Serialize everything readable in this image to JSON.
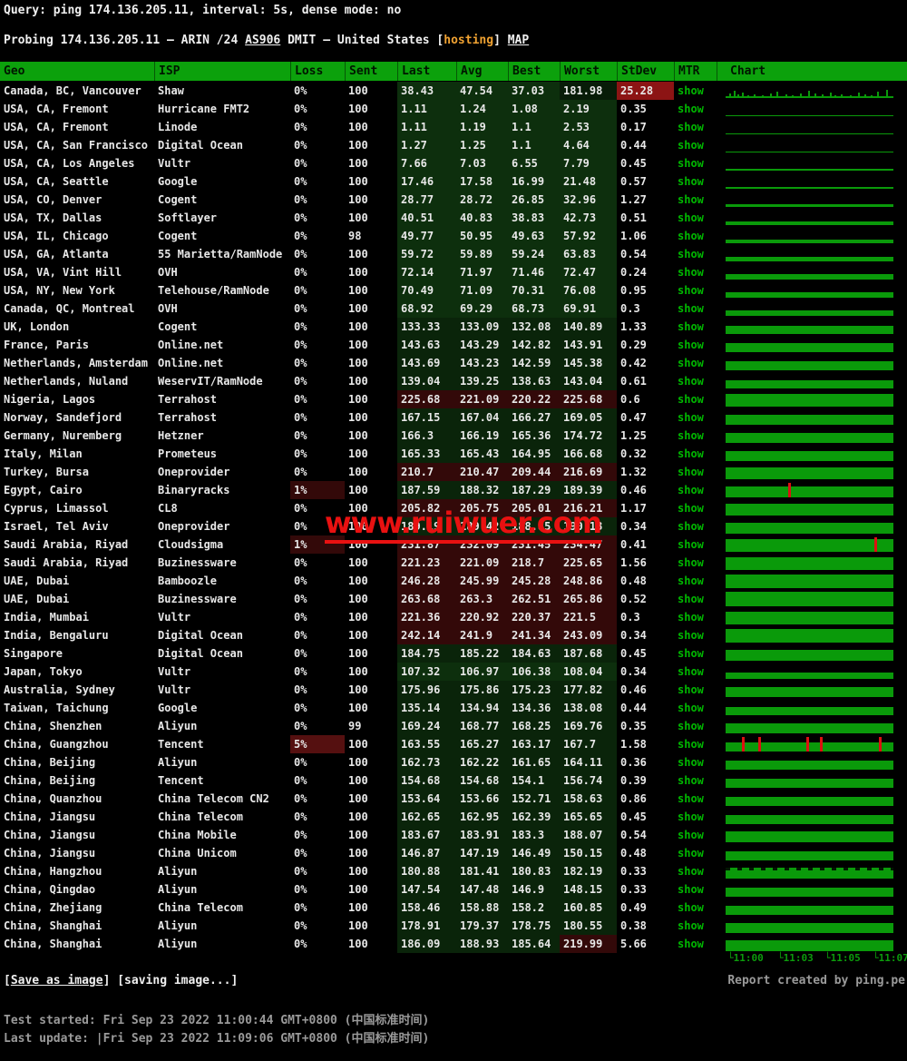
{
  "top": {
    "query": "Query: ping 174.136.205.11, interval: 5s, dense mode: no",
    "probing_prefix": "Probing 174.136.205.11 — ARIN /24 ",
    "as_label": "AS906",
    "probing_mid": " DMIT — United States [",
    "hosting_label": "hosting",
    "probing_close": "] ",
    "map_label": "MAP"
  },
  "table": {
    "columns": [
      "Geo",
      "ISP",
      "Loss",
      "Sent",
      "Last",
      "Avg",
      "Best",
      "Worst",
      "StDev",
      "MTR",
      "Chart"
    ],
    "mtr_label": "show",
    "rows": [
      {
        "geo": "Canada, BC, Vancouver",
        "isp": "Shaw",
        "loss": "0%",
        "sent": "100",
        "last": "38.43",
        "avg": "47.54",
        "best": "37.03",
        "worst": "181.98",
        "stdev": "25.28",
        "heat": "g1",
        "worst_heat": "dark",
        "stdev_heat": "alert",
        "bar": 2,
        "texture": "spiky"
      },
      {
        "geo": "USA, CA, Fremont",
        "isp": "Hurricane FMT2",
        "loss": "0%",
        "sent": "100",
        "last": "1.11",
        "avg": "1.24",
        "best": "1.08",
        "worst": "2.19",
        "stdev": "0.35",
        "heat": "g1",
        "bar": 1
      },
      {
        "geo": "USA, CA, Fremont",
        "isp": "Linode",
        "loss": "0%",
        "sent": "100",
        "last": "1.11",
        "avg": "1.19",
        "best": "1.1",
        "worst": "2.53",
        "stdev": "0.17",
        "heat": "g1",
        "bar": 1
      },
      {
        "geo": "USA, CA, San Francisco",
        "isp": "Digital Ocean",
        "loss": "0%",
        "sent": "100",
        "last": "1.27",
        "avg": "1.25",
        "best": "1.1",
        "worst": "4.64",
        "stdev": "0.44",
        "heat": "g1",
        "bar": 1
      },
      {
        "geo": "USA, CA, Los Angeles",
        "isp": "Vultr",
        "loss": "0%",
        "sent": "100",
        "last": "7.66",
        "avg": "7.03",
        "best": "6.55",
        "worst": "7.79",
        "stdev": "0.45",
        "heat": "g1",
        "bar": 2
      },
      {
        "geo": "USA, CA, Seattle",
        "isp": "Google",
        "loss": "0%",
        "sent": "100",
        "last": "17.46",
        "avg": "17.58",
        "best": "16.99",
        "worst": "21.48",
        "stdev": "0.57",
        "heat": "g1",
        "bar": 2
      },
      {
        "geo": "USA, CO, Denver",
        "isp": "Cogent",
        "loss": "0%",
        "sent": "100",
        "last": "28.77",
        "avg": "28.72",
        "best": "26.85",
        "worst": "32.96",
        "stdev": "1.27",
        "heat": "g1",
        "bar": 3
      },
      {
        "geo": "USA, TX, Dallas",
        "isp": "Softlayer",
        "loss": "0%",
        "sent": "100",
        "last": "40.51",
        "avg": "40.83",
        "best": "38.83",
        "worst": "42.73",
        "stdev": "0.51",
        "heat": "g1",
        "bar": 4
      },
      {
        "geo": "USA, IL, Chicago",
        "isp": "Cogent",
        "loss": "0%",
        "sent": "98",
        "last": "49.77",
        "avg": "50.95",
        "best": "49.63",
        "worst": "57.92",
        "stdev": "1.06",
        "heat": "g1",
        "bar": 4
      },
      {
        "geo": "USA, GA, Atlanta",
        "isp": "55 Marietta/RamNode",
        "loss": "0%",
        "sent": "100",
        "last": "59.72",
        "avg": "59.89",
        "best": "59.24",
        "worst": "63.83",
        "stdev": "0.54",
        "heat": "g1",
        "bar": 5
      },
      {
        "geo": "USA, VA, Vint Hill",
        "isp": "OVH",
        "loss": "0%",
        "sent": "100",
        "last": "72.14",
        "avg": "71.97",
        "best": "71.46",
        "worst": "72.47",
        "stdev": "0.24",
        "heat": "g1",
        "bar": 6
      },
      {
        "geo": "USA, NY, New York",
        "isp": "Telehouse/RamNode",
        "loss": "0%",
        "sent": "100",
        "last": "70.49",
        "avg": "71.09",
        "best": "70.31",
        "worst": "76.08",
        "stdev": "0.95",
        "heat": "g1",
        "bar": 6
      },
      {
        "geo": "Canada, QC, Montreal",
        "isp": "OVH",
        "loss": "0%",
        "sent": "100",
        "last": "68.92",
        "avg": "69.29",
        "best": "68.73",
        "worst": "69.91",
        "stdev": "0.3",
        "heat": "g1",
        "bar": 6
      },
      {
        "geo": "UK, London",
        "isp": "Cogent",
        "loss": "0%",
        "sent": "100",
        "last": "133.33",
        "avg": "133.09",
        "best": "132.08",
        "worst": "140.89",
        "stdev": "1.33",
        "heat": "g2",
        "bar": 9
      },
      {
        "geo": "France, Paris",
        "isp": "Online.net",
        "loss": "0%",
        "sent": "100",
        "last": "143.63",
        "avg": "143.29",
        "best": "142.82",
        "worst": "143.91",
        "stdev": "0.29",
        "heat": "g2",
        "bar": 10
      },
      {
        "geo": "Netherlands, Amsterdam",
        "isp": "Online.net",
        "loss": "0%",
        "sent": "100",
        "last": "143.69",
        "avg": "143.23",
        "best": "142.59",
        "worst": "145.38",
        "stdev": "0.42",
        "heat": "g2",
        "bar": 10
      },
      {
        "geo": "Netherlands, Nuland",
        "isp": "WeservIT/RamNode",
        "loss": "0%",
        "sent": "100",
        "last": "139.04",
        "avg": "139.25",
        "best": "138.63",
        "worst": "143.04",
        "stdev": "0.61",
        "heat": "g2",
        "bar": 9
      },
      {
        "geo": "Nigeria, Lagos",
        "isp": "Terrahost",
        "loss": "0%",
        "sent": "100",
        "last": "225.68",
        "avg": "221.09",
        "best": "220.22",
        "worst": "225.68",
        "stdev": "0.6",
        "heat": "red",
        "bar": 14
      },
      {
        "geo": "Norway, Sandefjord",
        "isp": "Terrahost",
        "loss": "0%",
        "sent": "100",
        "last": "167.15",
        "avg": "167.04",
        "best": "166.27",
        "worst": "169.05",
        "stdev": "0.47",
        "heat": "g2",
        "bar": 11
      },
      {
        "geo": "Germany, Nuremberg",
        "isp": "Hetzner",
        "loss": "0%",
        "sent": "100",
        "last": "166.3",
        "avg": "166.19",
        "best": "165.36",
        "worst": "174.72",
        "stdev": "1.25",
        "heat": "g2",
        "bar": 11
      },
      {
        "geo": "Italy, Milan",
        "isp": "Prometeus",
        "loss": "0%",
        "sent": "100",
        "last": "165.33",
        "avg": "165.43",
        "best": "164.95",
        "worst": "166.68",
        "stdev": "0.32",
        "heat": "g2",
        "bar": 11
      },
      {
        "geo": "Turkey, Bursa",
        "isp": "Oneprovider",
        "loss": "0%",
        "sent": "100",
        "last": "210.7",
        "avg": "210.47",
        "best": "209.44",
        "worst": "216.69",
        "stdev": "1.32",
        "heat": "red",
        "bar": 13
      },
      {
        "geo": "Egypt, Cairo",
        "isp": "Binaryracks",
        "loss": "1%",
        "sent": "100",
        "last": "187.59",
        "avg": "188.32",
        "best": "187.29",
        "worst": "189.39",
        "stdev": "0.46",
        "heat": "g2",
        "loss_heat": "l1",
        "bar": 12,
        "spikes": [
          0.38
        ]
      },
      {
        "geo": "Cyprus, Limassol",
        "isp": "CL8",
        "loss": "0%",
        "sent": "100",
        "last": "205.82",
        "avg": "205.75",
        "best": "205.01",
        "worst": "216.21",
        "stdev": "1.17",
        "heat": "red",
        "bar": 13
      },
      {
        "geo": "Israel, Tel Aviv",
        "isp": "Oneprovider",
        "loss": "0%",
        "sent": "100",
        "last": "189.19",
        "avg": "189.42",
        "best": "188.85",
        "worst": "190.13",
        "stdev": "0.34",
        "heat": "g2",
        "bar": 12
      },
      {
        "geo": "Saudi Arabia, Riyad",
        "isp": "Cloudsigma",
        "loss": "1%",
        "sent": "100",
        "last": "231.87",
        "avg": "232.09",
        "best": "231.45",
        "worst": "234.47",
        "stdev": "0.41",
        "heat": "red",
        "loss_heat": "l1",
        "bar": 14,
        "spikes": [
          0.9
        ]
      },
      {
        "geo": "Saudi Arabia, Riyad",
        "isp": "Buzinessware",
        "loss": "0%",
        "sent": "100",
        "last": "221.23",
        "avg": "221.09",
        "best": "218.7",
        "worst": "225.65",
        "stdev": "1.56",
        "heat": "red",
        "bar": 14
      },
      {
        "geo": "UAE, Dubai",
        "isp": "Bamboozle",
        "loss": "0%",
        "sent": "100",
        "last": "246.28",
        "avg": "245.99",
        "best": "245.28",
        "worst": "248.86",
        "stdev": "0.48",
        "heat": "red",
        "bar": 15
      },
      {
        "geo": "UAE, Dubai",
        "isp": "Buzinessware",
        "loss": "0%",
        "sent": "100",
        "last": "263.68",
        "avg": "263.3",
        "best": "262.51",
        "worst": "265.86",
        "stdev": "0.52",
        "heat": "red",
        "bar": 16
      },
      {
        "geo": "India, Mumbai",
        "isp": "Vultr",
        "loss": "0%",
        "sent": "100",
        "last": "221.36",
        "avg": "220.92",
        "best": "220.37",
        "worst": "221.5",
        "stdev": "0.3",
        "heat": "red",
        "bar": 14
      },
      {
        "geo": "India, Bengaluru",
        "isp": "Digital Ocean",
        "loss": "0%",
        "sent": "100",
        "last": "242.14",
        "avg": "241.9",
        "best": "241.34",
        "worst": "243.09",
        "stdev": "0.34",
        "heat": "red",
        "bar": 15
      },
      {
        "geo": "Singapore",
        "isp": "Digital Ocean",
        "loss": "0%",
        "sent": "100",
        "last": "184.75",
        "avg": "185.22",
        "best": "184.63",
        "worst": "187.68",
        "stdev": "0.45",
        "heat": "g2",
        "bar": 12
      },
      {
        "geo": "Japan, Tokyo",
        "isp": "Vultr",
        "loss": "0%",
        "sent": "100",
        "last": "107.32",
        "avg": "106.97",
        "best": "106.38",
        "worst": "108.04",
        "stdev": "0.34",
        "heat": "g1",
        "bar": 7
      },
      {
        "geo": "Australia, Sydney",
        "isp": "Vultr",
        "loss": "0%",
        "sent": "100",
        "last": "175.96",
        "avg": "175.86",
        "best": "175.23",
        "worst": "177.82",
        "stdev": "0.46",
        "heat": "g2",
        "bar": 11
      },
      {
        "geo": "Taiwan, Taichung",
        "isp": "Google",
        "loss": "0%",
        "sent": "100",
        "last": "135.14",
        "avg": "134.94",
        "best": "134.36",
        "worst": "138.08",
        "stdev": "0.44",
        "heat": "g2",
        "bar": 9
      },
      {
        "geo": "China, Shenzhen",
        "isp": "Aliyun",
        "loss": "0%",
        "sent": "99",
        "last": "169.24",
        "avg": "168.77",
        "best": "168.25",
        "worst": "169.76",
        "stdev": "0.35",
        "heat": "g2",
        "bar": 11
      },
      {
        "geo": "China, Guangzhou",
        "isp": "Tencent",
        "loss": "5%",
        "sent": "100",
        "last": "163.55",
        "avg": "165.27",
        "best": "163.17",
        "worst": "167.7",
        "stdev": "1.58",
        "heat": "g2",
        "loss_heat": "l5",
        "bar": 10,
        "spikes": [
          0.1,
          0.2,
          0.49,
          0.57,
          0.93
        ]
      },
      {
        "geo": "China, Beijing",
        "isp": "Aliyun",
        "loss": "0%",
        "sent": "100",
        "last": "162.73",
        "avg": "162.22",
        "best": "161.65",
        "worst": "164.11",
        "stdev": "0.36",
        "heat": "g2",
        "bar": 10
      },
      {
        "geo": "China, Beijing",
        "isp": "Tencent",
        "loss": "0%",
        "sent": "100",
        "last": "154.68",
        "avg": "154.68",
        "best": "154.1",
        "worst": "156.74",
        "stdev": "0.39",
        "heat": "g2",
        "bar": 10
      },
      {
        "geo": "China, Quanzhou",
        "isp": "China Telecom CN2",
        "loss": "0%",
        "sent": "100",
        "last": "153.64",
        "avg": "153.66",
        "best": "152.71",
        "worst": "158.63",
        "stdev": "0.86",
        "heat": "g2",
        "bar": 10
      },
      {
        "geo": "China, Jiangsu",
        "isp": "China Telecom",
        "loss": "0%",
        "sent": "100",
        "last": "162.65",
        "avg": "162.95",
        "best": "162.39",
        "worst": "165.65",
        "stdev": "0.45",
        "heat": "g2",
        "bar": 10
      },
      {
        "geo": "China, Jiangsu",
        "isp": "China Mobile",
        "loss": "0%",
        "sent": "100",
        "last": "183.67",
        "avg": "183.91",
        "best": "183.3",
        "worst": "188.07",
        "stdev": "0.54",
        "heat": "g2",
        "bar": 12
      },
      {
        "geo": "China, Jiangsu",
        "isp": "China Unicom",
        "loss": "0%",
        "sent": "100",
        "last": "146.87",
        "avg": "147.19",
        "best": "146.49",
        "worst": "150.15",
        "stdev": "0.48",
        "heat": "g2",
        "bar": 10
      },
      {
        "geo": "China, Hangzhou",
        "isp": "Aliyun",
        "loss": "0%",
        "sent": "100",
        "last": "180.88",
        "avg": "181.41",
        "best": "180.83",
        "worst": "182.19",
        "stdev": "0.33",
        "heat": "g2",
        "bar": 12,
        "texture": "notched"
      },
      {
        "geo": "China, Qingdao",
        "isp": "Aliyun",
        "loss": "0%",
        "sent": "100",
        "last": "147.54",
        "avg": "147.48",
        "best": "146.9",
        "worst": "148.15",
        "stdev": "0.33",
        "heat": "g2",
        "bar": 10
      },
      {
        "geo": "China, Zhejiang",
        "isp": "China Telecom",
        "loss": "0%",
        "sent": "100",
        "last": "158.46",
        "avg": "158.88",
        "best": "158.2",
        "worst": "160.85",
        "stdev": "0.49",
        "heat": "g2",
        "bar": 10
      },
      {
        "geo": "China, Shanghai",
        "isp": "Aliyun",
        "loss": "0%",
        "sent": "100",
        "last": "178.91",
        "avg": "179.37",
        "best": "178.75",
        "worst": "180.55",
        "stdev": "0.38",
        "heat": "g2",
        "bar": 11
      },
      {
        "geo": "China, Shanghai",
        "isp": "Aliyun",
        "loss": "0%",
        "sent": "100",
        "last": "186.09",
        "avg": "188.93",
        "best": "185.64",
        "worst": "219.99",
        "stdev": "5.66",
        "heat": "g2",
        "worst_heat": "red",
        "bar": 12
      }
    ]
  },
  "chart_axis": [
    "└11:00",
    "└11:03",
    "└11:05",
    "└11:07"
  ],
  "footer": {
    "bracket_open": "[",
    "save_label": "Save as image",
    "save_rest": "] [saving image...]",
    "report": "Report created by ping.pe",
    "test_started": "Test started: Fri Sep 23 2022 11:00:44 GMT+0800 (中国标准时间)",
    "last_update": "Last update: |Fri Sep 23 2022 11:09:06 GMT+0800 (中国标准时间)"
  },
  "watermark": {
    "text": "www.ruiwuer.com"
  },
  "colors": {
    "header_green": "#0ca10c",
    "link_green": "#00b800",
    "chart_bar_green": "#0a9a0a",
    "loss_spike_red": "#dd1111",
    "hosting_orange": "#f0a232",
    "watermark_red": "#e81111",
    "latency_green_bg": "#0a240a",
    "latency_red_bg": "#330909",
    "stdev_alert_bg": "#8c1414"
  }
}
